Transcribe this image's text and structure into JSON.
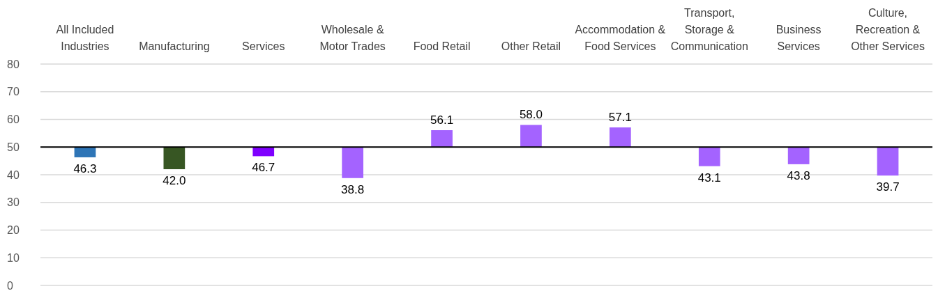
{
  "chart_data": {
    "type": "bar",
    "categories": [
      "All Included Industries",
      "Manufacturing",
      "Services",
      "Wholesale & Motor Trades",
      "Food Retail",
      "Other Retail",
      "Accommodation & Food Services",
      "Transport, Storage & Communication",
      "Business Services",
      "Culture, Recreation & Other Services"
    ],
    "base": [
      50,
      50,
      50,
      50,
      50,
      50,
      50,
      50,
      50,
      50
    ],
    "values": [
      -3.7,
      -8.0,
      -3.3,
      -11.2,
      6.1,
      8.0,
      7.1,
      -6.9,
      -6.2,
      -10.3
    ],
    "value_labels": [
      "46.3",
      "42.0",
      "46.7",
      "38.8",
      "56.1",
      "58.0",
      "57.1",
      "43.1",
      "43.8",
      "39.7"
    ],
    "colors": [
      "#2e75b6",
      "#375623",
      "#7f00ff",
      "#a463ff",
      "#a463ff",
      "#a463ff",
      "#a463ff",
      "#a463ff",
      "#a463ff",
      "#a463ff"
    ],
    "ylim": [
      0,
      80
    ],
    "yticks": [
      0,
      10,
      20,
      30,
      40,
      50,
      60,
      70,
      80
    ],
    "grid": "y",
    "ref_lines": [
      {
        "axis": "y",
        "value": 50,
        "color": "#000000"
      }
    ]
  }
}
